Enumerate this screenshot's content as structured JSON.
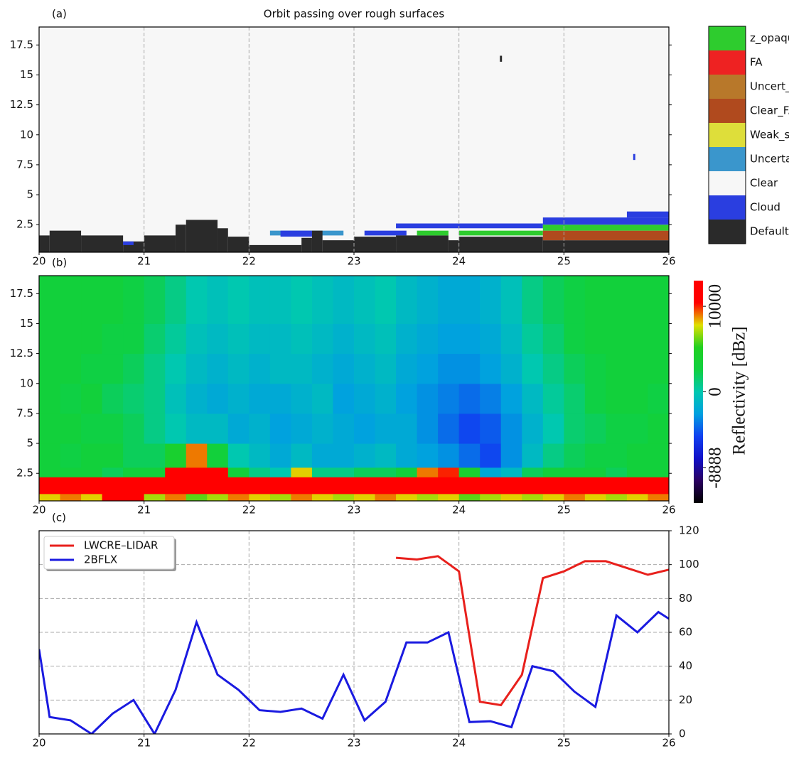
{
  "chart_data": [
    {
      "type": "mask",
      "panel_label": "(a)",
      "title": "Orbit passing over rough surfaces",
      "classes": [
        {
          "name": "z_opaque",
          "color": "#2ecc2e"
        },
        {
          "name": "FA",
          "color": "#ee2222"
        },
        {
          "name": "Uncert_FA",
          "color": "#b8782a"
        },
        {
          "name": "Clear_FA",
          "color": "#b04a1e"
        },
        {
          "name": "Weak_sign",
          "color": "#dede3a"
        },
        {
          "name": "Uncertain",
          "color": "#3a96cc"
        },
        {
          "name": "Clear",
          "color": "#f7f7f7"
        },
        {
          "name": "Cloud",
          "color": "#2a3ee0"
        },
        {
          "name": "Default",
          "color": "#2a2a2a"
        }
      ],
      "background_class": 6,
      "regions": [
        {
          "x": [
            20,
            20.1
          ],
          "y": [
            0.2,
            1.6
          ],
          "class": 8
        },
        {
          "x": [
            20.1,
            20.4
          ],
          "y": [
            0.2,
            2.0
          ],
          "class": 8
        },
        {
          "x": [
            20.4,
            20.8
          ],
          "y": [
            0.2,
            1.6
          ],
          "class": 8
        },
        {
          "x": [
            20.8,
            21.0
          ],
          "y": [
            0.2,
            1.1
          ],
          "class": 8
        },
        {
          "x": [
            20.8,
            20.9
          ],
          "y": [
            0.8,
            1.1
          ],
          "class": 7
        },
        {
          "x": [
            21.0,
            21.3
          ],
          "y": [
            0.2,
            1.6
          ],
          "class": 8
        },
        {
          "x": [
            21.3,
            21.4
          ],
          "y": [
            0.2,
            2.5
          ],
          "class": 8
        },
        {
          "x": [
            21.4,
            21.7
          ],
          "y": [
            0.2,
            2.9
          ],
          "class": 8
        },
        {
          "x": [
            21.7,
            21.8
          ],
          "y": [
            0.2,
            2.2
          ],
          "class": 8
        },
        {
          "x": [
            21.8,
            22.0
          ],
          "y": [
            0.2,
            1.5
          ],
          "class": 8
        },
        {
          "x": [
            22.0,
            22.5
          ],
          "y": [
            0.2,
            0.8
          ],
          "class": 8
        },
        {
          "x": [
            22.2,
            22.9
          ],
          "y": [
            1.6,
            2.0
          ],
          "class": 5
        },
        {
          "x": [
            22.3,
            22.6
          ],
          "y": [
            1.5,
            2.0
          ],
          "class": 7
        },
        {
          "x": [
            22.5,
            22.6
          ],
          "y": [
            0.2,
            1.4
          ],
          "class": 8
        },
        {
          "x": [
            22.6,
            22.7
          ],
          "y": [
            0.2,
            2.0
          ],
          "class": 8
        },
        {
          "x": [
            22.7,
            23.0
          ],
          "y": [
            0.2,
            1.2
          ],
          "class": 8
        },
        {
          "x": [
            23.0,
            23.4
          ],
          "y": [
            0.2,
            1.5
          ],
          "class": 8
        },
        {
          "x": [
            23.1,
            23.5
          ],
          "y": [
            1.6,
            2.0
          ],
          "class": 7
        },
        {
          "x": [
            23.4,
            23.9
          ],
          "y": [
            0.2,
            1.6
          ],
          "class": 8
        },
        {
          "x": [
            23.6,
            23.9
          ],
          "y": [
            1.6,
            2.0
          ],
          "class": 0
        },
        {
          "x": [
            23.4,
            24.8
          ],
          "y": [
            2.2,
            2.6
          ],
          "class": 7
        },
        {
          "x": [
            23.9,
            24.0
          ],
          "y": [
            0.2,
            1.2
          ],
          "class": 8
        },
        {
          "x": [
            24.0,
            24.8
          ],
          "y": [
            0.2,
            1.5
          ],
          "class": 8
        },
        {
          "x": [
            24.0,
            24.8
          ],
          "y": [
            1.6,
            2.0
          ],
          "class": 0
        },
        {
          "x": [
            24.8,
            26
          ],
          "y": [
            0.2,
            1.2
          ],
          "class": 8
        },
        {
          "x": [
            24.8,
            26
          ],
          "y": [
            1.2,
            2.0
          ],
          "class": 3
        },
        {
          "x": [
            24.8,
            26
          ],
          "y": [
            2.0,
            2.5
          ],
          "class": 0
        },
        {
          "x": [
            24.8,
            26
          ],
          "y": [
            2.5,
            3.1
          ],
          "class": 7
        },
        {
          "x": [
            25.6,
            26
          ],
          "y": [
            3.1,
            3.6
          ],
          "class": 7
        },
        {
          "x": [
            24.39,
            24.41
          ],
          "y": [
            16.1,
            16.6
          ],
          "class": 8
        },
        {
          "x": [
            25.66,
            25.68
          ],
          "y": [
            7.9,
            8.4
          ],
          "class": 7
        }
      ],
      "xlim": [
        20,
        26
      ],
      "xticks": [
        20,
        21,
        22,
        23,
        24,
        25,
        26
      ],
      "ylim": [
        0.2,
        19
      ],
      "yticks": [
        2.5,
        5.0,
        7.5,
        10.0,
        12.5,
        15.0,
        17.5
      ],
      "xgrid": true
    },
    {
      "type": "heatmap",
      "panel_label": "(b)",
      "x_edges": [
        20,
        20.2,
        20.4,
        20.6,
        20.8,
        21,
        21.2,
        21.4,
        21.6,
        21.8,
        22,
        22.2,
        22.4,
        22.6,
        22.8,
        23,
        23.2,
        23.4,
        23.6,
        23.8,
        24,
        24.2,
        24.4,
        24.6,
        24.8,
        25,
        25.2,
        25.4,
        25.6,
        25.8,
        26
      ],
      "y_edges": [
        0.2,
        0.8,
        1.6,
        2.2,
        3.0,
        5,
        7.5,
        10,
        12.5,
        15,
        19
      ],
      "z": [
        [
          8000,
          9000,
          8000,
          12000,
          12000,
          7000,
          9000,
          6000,
          7000,
          9000,
          8000,
          7000,
          9000,
          8000,
          7000,
          8000,
          9000,
          8000,
          7000,
          8000,
          6000,
          7000,
          8000,
          7000,
          8000,
          9000,
          8000,
          7000,
          8000,
          9000
        ],
        [
          12000,
          12000,
          12000,
          12000,
          12000,
          12000,
          12000,
          12000,
          12000,
          12000,
          12000,
          12000,
          12000,
          12000,
          12000,
          12000,
          12000,
          12000,
          12000,
          12000,
          12000,
          12000,
          12000,
          12000,
          12000,
          12000,
          12000,
          12000,
          12000,
          12000
        ],
        [
          12000,
          12000,
          12000,
          12000,
          12000,
          12000,
          12000,
          12000,
          12000,
          12000,
          12000,
          11000,
          12000,
          12000,
          12000,
          12000,
          12000,
          12000,
          12000,
          12000,
          12000,
          12000,
          12000,
          12000,
          12000,
          12000,
          12000,
          12000,
          12000,
          12000
        ],
        [
          3000,
          3000,
          3000,
          2000,
          3000,
          3000,
          12000,
          12000,
          12000,
          3000,
          1000,
          0,
          8000,
          1000,
          1000,
          2000,
          2000,
          3000,
          9000,
          10000,
          4000,
          -2000,
          -1000,
          2000,
          3000,
          3000,
          3000,
          2000,
          3000,
          3000
        ],
        [
          3000,
          2500,
          3000,
          3000,
          2000,
          2000,
          4000,
          9000,
          3000,
          0,
          -1000,
          -2000,
          -1000,
          -2000,
          -2000,
          -1500,
          -1000,
          -2000,
          -2500,
          -3000,
          -4000,
          -5000,
          -3000,
          -1000,
          1000,
          2000,
          2500,
          2500,
          3000,
          3000
        ],
        [
          3000,
          3000,
          2500,
          2500,
          2000,
          1000,
          0,
          -1000,
          -1000,
          -2000,
          -1500,
          -2500,
          -2000,
          -1500,
          -2000,
          -2500,
          -2000,
          -2000,
          -3000,
          -4000,
          -5000,
          -4500,
          -3000,
          -1500,
          0,
          1500,
          2000,
          2500,
          2500,
          3000
        ],
        [
          3000,
          2500,
          3000,
          2000,
          1500,
          1000,
          -500,
          -1500,
          -2000,
          -1500,
          -2000,
          -2000,
          -1500,
          -1000,
          -2500,
          -2000,
          -1500,
          -2500,
          -3000,
          -3500,
          -4000,
          -3500,
          -2500,
          -1000,
          500,
          1500,
          2500,
          3000,
          3000,
          2500
        ],
        [
          3000,
          3000,
          2500,
          2500,
          2000,
          1000,
          0,
          -1000,
          -1500,
          -1000,
          -1500,
          -1000,
          -1000,
          -1500,
          -2000,
          -1500,
          -1000,
          -2000,
          -2500,
          -3000,
          -3000,
          -2500,
          -1500,
          0,
          1000,
          2000,
          2500,
          3000,
          3000,
          3000
        ],
        [
          3000,
          3000,
          3000,
          2500,
          2500,
          1500,
          500,
          -500,
          -1000,
          -500,
          -1000,
          -1000,
          -500,
          -1000,
          -1500,
          -1000,
          -500,
          -1500,
          -2000,
          -2500,
          -2500,
          -2000,
          -1000,
          500,
          1500,
          2500,
          3000,
          3000,
          3000,
          3000
        ],
        [
          3000,
          3000,
          3000,
          3000,
          2500,
          2000,
          1000,
          0,
          -500,
          0,
          -500,
          -500,
          0,
          -500,
          -1000,
          -500,
          0,
          -1000,
          -1500,
          -2000,
          -2000,
          -1500,
          -500,
          1000,
          2000,
          2500,
          3000,
          3000,
          3000,
          3000
        ]
      ],
      "clim": [
        -13000,
        13000
      ],
      "colorbar_ticks": [
        -8888,
        0,
        10000
      ],
      "colorbar_label": "Reflectivity [dBz]",
      "colormap": [
        "#000000",
        "#2a0060",
        "#1010c8",
        "#1040f0",
        "#00a0e0",
        "#00c8b0",
        "#10d040",
        "#20d020",
        "#e0e000",
        "#ff0000",
        "#ff0000"
      ],
      "xlim": [
        20,
        26
      ],
      "xticks": [
        20,
        21,
        22,
        23,
        24,
        25,
        26
      ],
      "ylim": [
        0.2,
        19
      ],
      "yticks": [
        2.5,
        5.0,
        7.5,
        10.0,
        12.5,
        15.0,
        17.5
      ]
    },
    {
      "type": "line",
      "panel_label": "(c)",
      "series": [
        {
          "name": "LWCRE–LIDAR",
          "color": "#e8201c",
          "axis": "y2",
          "x": [
            23.4,
            23.6,
            23.8,
            24.0,
            24.2,
            24.4,
            24.6,
            24.8,
            25.0,
            25.2,
            25.4,
            25.6,
            25.8,
            26.0
          ],
          "values": [
            104,
            103,
            105,
            96,
            19,
            17,
            35,
            92,
            96,
            102,
            102,
            98,
            94,
            97
          ]
        },
        {
          "name": "2BFLX",
          "color": "#1a1ae0",
          "axis": "y2",
          "x": [
            20.0,
            20.1,
            20.3,
            20.5,
            20.7,
            20.9,
            21.1,
            21.3,
            21.5,
            21.7,
            21.9,
            22.1,
            22.3,
            22.5,
            22.7,
            22.9,
            23.1,
            23.3,
            23.5,
            23.7,
            23.9,
            24.1,
            24.3,
            24.5,
            24.7,
            24.9,
            25.1,
            25.3,
            25.5,
            25.7,
            25.9,
            26.0
          ],
          "values": [
            50,
            10,
            8,
            0,
            12,
            20,
            0,
            26,
            66,
            35,
            26,
            14,
            13,
            15,
            9,
            35,
            8,
            19,
            54,
            54,
            60,
            7,
            7.5,
            4,
            40,
            37,
            25,
            16,
            70,
            60,
            72,
            68
          ]
        }
      ],
      "xlim": [
        20,
        26
      ],
      "xticks": [
        20,
        21,
        22,
        23,
        24,
        25,
        26
      ],
      "y2lim": [
        0,
        120
      ],
      "y2ticks": [
        0,
        20,
        40,
        60,
        80,
        100,
        120
      ],
      "grid": true,
      "legend": "upper left"
    }
  ]
}
